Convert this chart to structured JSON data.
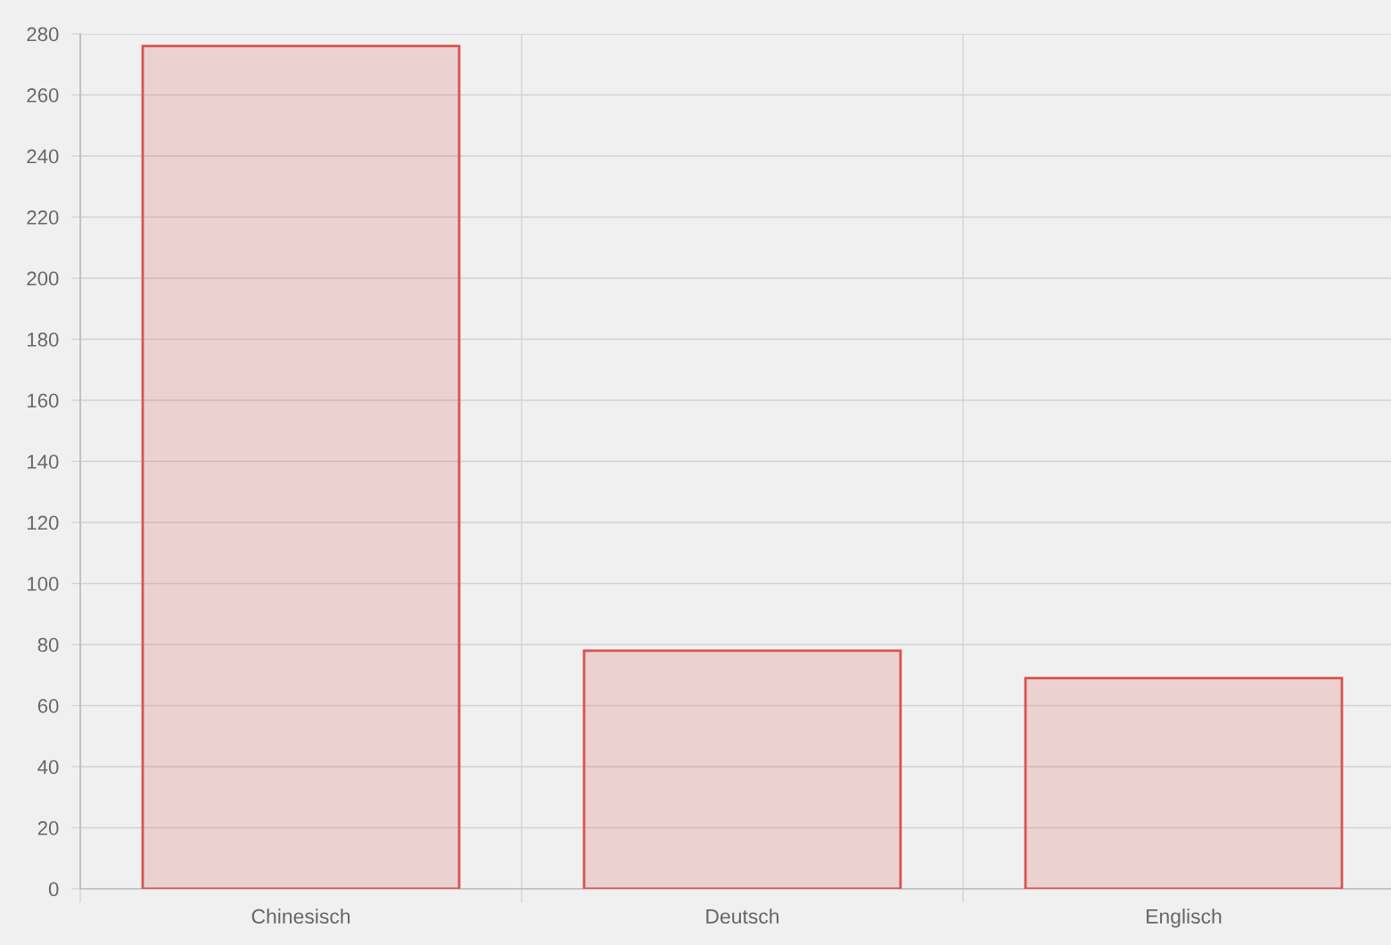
{
  "chart_data": {
    "type": "bar",
    "categories": [
      "Chinesisch",
      "Deutsch",
      "Englisch"
    ],
    "series": [
      {
        "color": "#d9534f",
        "values": [
          276,
          78,
          69
        ]
      }
    ],
    "ylim": [
      0,
      280
    ],
    "yticks": [
      0,
      20,
      40,
      60,
      80,
      100,
      120,
      140,
      160,
      180,
      200,
      220,
      240,
      260,
      280
    ],
    "grid": true
  }
}
